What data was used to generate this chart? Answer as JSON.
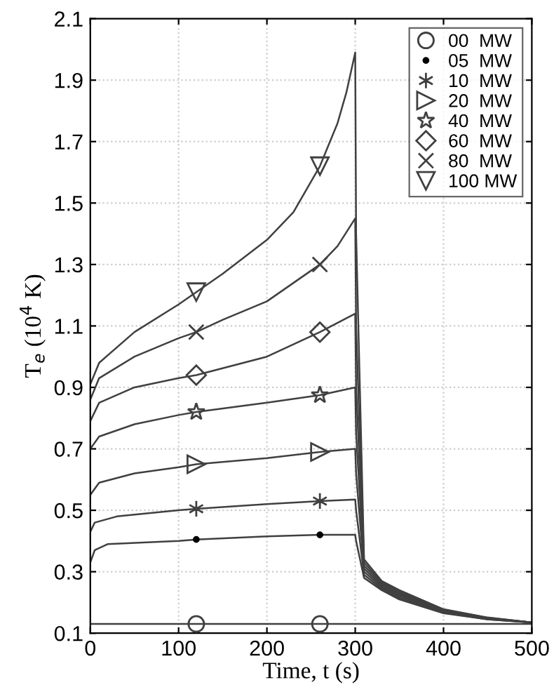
{
  "chart_data": {
    "type": "line",
    "xlabel": "Time, t (s)",
    "ylabel": "T$_{e}$ (10$^{4}$ K)",
    "xlim": [
      0,
      500
    ],
    "xticks": [
      0,
      100,
      200,
      300,
      400,
      500
    ],
    "ylim": [
      0.1,
      2.1
    ],
    "yticks": [
      0.1,
      0.3,
      0.5,
      0.7,
      0.9,
      1.1,
      1.3,
      1.5,
      1.7,
      1.9,
      2.1
    ],
    "grid": true,
    "legend": "top right",
    "series": [
      {
        "color": "#404040",
        "x": [
          0,
          10,
          50,
          100,
          120,
          150,
          200,
          230,
          260,
          280,
          290,
          300,
          301,
          310,
          330,
          350,
          400,
          450,
          500
        ],
        "values": [
          0.91,
          0.98,
          1.08,
          1.17,
          1.21,
          1.27,
          1.38,
          1.47,
          1.62,
          1.76,
          1.86,
          1.99,
          1.4,
          0.34,
          0.27,
          0.24,
          0.178,
          0.151,
          0.135
        ]
      },
      {
        "color": "#404040",
        "x": [
          0,
          10,
          50,
          100,
          120,
          150,
          200,
          260,
          280,
          300,
          301,
          310,
          330,
          350,
          400,
          450,
          500
        ],
        "values": [
          0.86,
          0.93,
          1.0,
          1.06,
          1.08,
          1.12,
          1.18,
          1.3,
          1.36,
          1.45,
          1.1,
          0.33,
          0.265,
          0.235,
          0.176,
          0.15,
          0.135
        ]
      },
      {
        "color": "#404040",
        "x": [
          0,
          10,
          50,
          100,
          120,
          200,
          260,
          300,
          301,
          310,
          330,
          350,
          400,
          450,
          500
        ],
        "values": [
          0.79,
          0.85,
          0.9,
          0.93,
          0.94,
          1.0,
          1.08,
          1.14,
          0.9,
          0.32,
          0.26,
          0.23,
          0.174,
          0.149,
          0.135
        ]
      },
      {
        "color": "#404040",
        "x": [
          0,
          10,
          50,
          100,
          120,
          200,
          260,
          300,
          301,
          310,
          330,
          350,
          400,
          450,
          500
        ],
        "values": [
          0.7,
          0.74,
          0.78,
          0.81,
          0.82,
          0.85,
          0.875,
          0.9,
          0.75,
          0.31,
          0.255,
          0.225,
          0.172,
          0.148,
          0.135
        ]
      },
      {
        "color": "#404040",
        "x": [
          0,
          10,
          50,
          100,
          120,
          200,
          260,
          300,
          301,
          310,
          330,
          350,
          400,
          450,
          500
        ],
        "values": [
          0.55,
          0.59,
          0.62,
          0.64,
          0.65,
          0.67,
          0.69,
          0.7,
          0.62,
          0.3,
          0.25,
          0.22,
          0.17,
          0.147,
          0.135
        ]
      },
      {
        "color": "#404040",
        "x": [
          0,
          5,
          30,
          100,
          120,
          200,
          260,
          300,
          301,
          310,
          330,
          350,
          400,
          450,
          500
        ],
        "values": [
          0.43,
          0.46,
          0.48,
          0.5,
          0.505,
          0.52,
          0.53,
          0.535,
          0.5,
          0.29,
          0.245,
          0.215,
          0.167,
          0.145,
          0.135
        ]
      },
      {
        "color": "#404040",
        "x": [
          0,
          5,
          20,
          100,
          120,
          200,
          260,
          300,
          301,
          310,
          330,
          350,
          400,
          450,
          500
        ],
        "values": [
          0.33,
          0.37,
          0.39,
          0.4,
          0.405,
          0.415,
          0.42,
          0.42,
          0.4,
          0.28,
          0.24,
          0.21,
          0.165,
          0.145,
          0.135
        ]
      },
      {
        "color": "#404040",
        "x": [
          0,
          100,
          200,
          300,
          400,
          500
        ],
        "values": [
          0.13,
          0.13,
          0.13,
          0.13,
          0.13,
          0.13
        ]
      },
      {
        "type": "scatter",
        "name": "00  MW",
        "marker": "circle",
        "color": "#404040",
        "x": [
          120,
          260
        ],
        "values": [
          0.13,
          0.13
        ]
      },
      {
        "type": "scatter",
        "name": "05  MW",
        "marker": "dot",
        "color": "#000000",
        "x": [
          120,
          260
        ],
        "values": [
          0.405,
          0.42
        ]
      },
      {
        "type": "scatter",
        "name": "10  MW",
        "marker": "cross",
        "color": "#404040",
        "x": [
          120,
          260
        ],
        "values": [
          0.505,
          0.53
        ]
      },
      {
        "type": "scatter",
        "name": "20  MW",
        "marker": "triangle-right",
        "color": "#404040",
        "x": [
          120,
          260
        ],
        "values": [
          0.65,
          0.69
        ]
      },
      {
        "type": "scatter",
        "name": "40  MW",
        "marker": "star",
        "color": "#404040",
        "x": [
          120,
          260
        ],
        "values": [
          0.82,
          0.875
        ]
      },
      {
        "type": "scatter",
        "name": "60  MW",
        "marker": "diamond",
        "color": "#404040",
        "x": [
          120,
          260
        ],
        "values": [
          0.94,
          1.08
        ]
      },
      {
        "type": "scatter",
        "name": "80  MW",
        "marker": "x",
        "color": "#404040",
        "x": [
          120,
          260
        ],
        "values": [
          1.08,
          1.3
        ]
      },
      {
        "type": "scatter",
        "name": "100 MW",
        "marker": "triangle-down",
        "color": "#404040",
        "x": [
          120,
          260
        ],
        "values": [
          1.21,
          1.62
        ]
      }
    ]
  }
}
